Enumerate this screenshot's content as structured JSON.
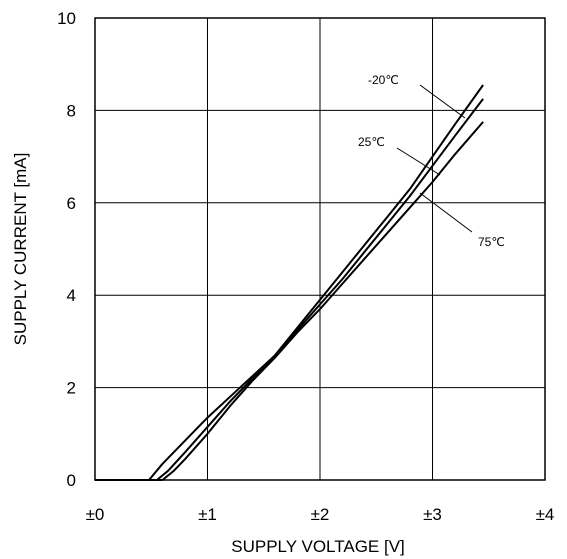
{
  "chart_data": {
    "type": "line",
    "xlabel": "SUPPLY VOLTAGE [V]",
    "ylabel": "SUPPLY CURRENT [mA]",
    "xlim": [
      0,
      4
    ],
    "ylim": [
      0,
      10
    ],
    "x_ticks": [
      0,
      1,
      2,
      3,
      4
    ],
    "x_tick_labels": [
      "±0",
      "±1",
      "±2",
      "±3",
      "±4"
    ],
    "y_ticks": [
      0,
      2,
      4,
      6,
      8,
      10
    ],
    "y_tick_labels": [
      "0",
      "2",
      "4",
      "6",
      "8",
      "10"
    ],
    "grid": true,
    "series": [
      {
        "name": "-20℃",
        "x": [
          0.48,
          0.6,
          0.8,
          1.0,
          1.2,
          1.4,
          1.6,
          1.8,
          2.0,
          2.2,
          2.4,
          2.6,
          2.8,
          3.0,
          3.2,
          3.45
        ],
        "y": [
          0.0,
          0.35,
          0.85,
          1.35,
          1.8,
          2.25,
          2.7,
          3.3,
          3.9,
          4.5,
          5.1,
          5.7,
          6.3,
          7.0,
          7.7,
          8.55
        ]
      },
      {
        "name": "25℃",
        "x": [
          0.55,
          0.65,
          0.8,
          1.0,
          1.2,
          1.4,
          1.6,
          1.8,
          2.0,
          2.2,
          2.4,
          2.6,
          2.8,
          3.0,
          3.2,
          3.45
        ],
        "y": [
          0.0,
          0.2,
          0.6,
          1.15,
          1.7,
          2.2,
          2.7,
          3.25,
          3.8,
          4.35,
          4.95,
          5.55,
          6.15,
          6.8,
          7.45,
          8.25
        ]
      },
      {
        "name": "75℃",
        "x": [
          0.6,
          0.7,
          0.8,
          1.0,
          1.2,
          1.4,
          1.6,
          1.8,
          2.0,
          2.2,
          2.4,
          2.6,
          2.8,
          3.0,
          3.2,
          3.45
        ],
        "y": [
          0.0,
          0.2,
          0.45,
          1.0,
          1.6,
          2.15,
          2.65,
          3.2,
          3.7,
          4.25,
          4.8,
          5.35,
          5.9,
          6.45,
          7.05,
          7.75
        ]
      }
    ],
    "annotations": [
      "-20℃",
      "25℃",
      "75℃"
    ]
  }
}
